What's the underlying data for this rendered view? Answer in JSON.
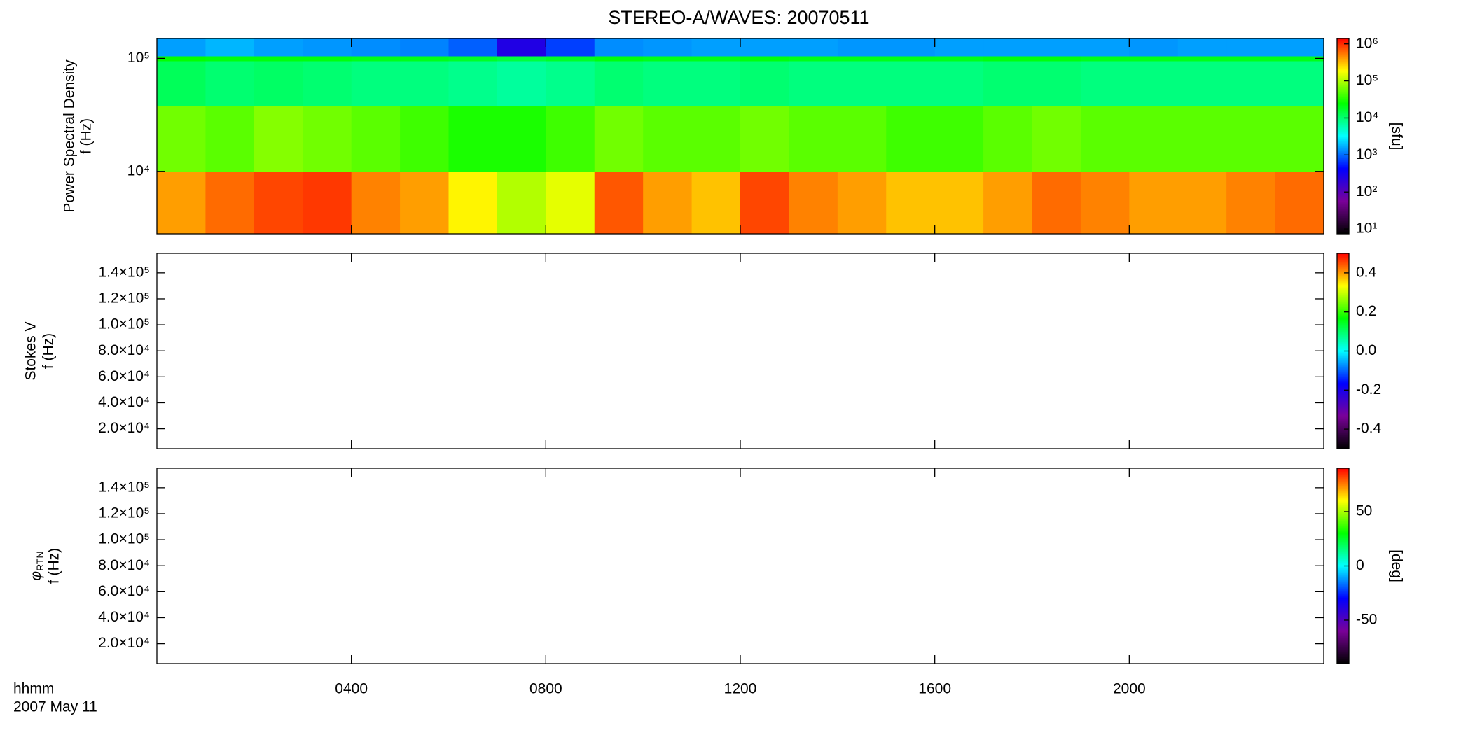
{
  "chart_data": {
    "type": "spectrogram",
    "title": "STEREO-A/WAVES: 20070511",
    "xlabel": "hhmm",
    "date_label": "2007 May 11",
    "xlim": [
      0,
      24
    ],
    "xticks": [
      {
        "value": 4,
        "label": "0400"
      },
      {
        "value": 8,
        "label": "0800"
      },
      {
        "value": 12,
        "label": "1200"
      },
      {
        "value": 16,
        "label": "1600"
      },
      {
        "value": 20,
        "label": "2000"
      }
    ],
    "colormap": [
      "#000000",
      "#7a0099",
      "#0000ff",
      "#00ffff",
      "#00ff00",
      "#ffff00",
      "#ff0000"
    ],
    "panels": [
      {
        "ylabel": [
          "Power Spectral Density",
          "f (Hz)"
        ],
        "yscale": "log",
        "ylim": [
          2800,
          150000
        ],
        "yticks": [
          {
            "value": 10000,
            "label": "10⁴"
          },
          {
            "value": 100000,
            "label": "10⁵"
          }
        ],
        "zscale": "log",
        "zlim": [
          7.4,
          1400000
        ],
        "zlabel": "[sfu]",
        "zticks": [
          {
            "value": 10,
            "label": "10¹"
          },
          {
            "value": 100,
            "label": "10²"
          },
          {
            "value": 1000,
            "label": "10³"
          },
          {
            "value": 10000,
            "label": "10⁴"
          },
          {
            "value": 100000,
            "label": "10⁵"
          },
          {
            "value": 1000000,
            "label": "10⁶"
          }
        ],
        "time_bins": [
          0,
          1,
          2,
          3,
          4,
          5,
          6,
          7,
          8,
          9,
          10,
          11,
          12,
          13,
          14,
          15,
          16,
          17,
          18,
          19,
          20,
          21,
          22,
          23,
          24
        ],
        "freq_bins": [
          2800,
          10000,
          38000,
          95000,
          105000,
          150000
        ],
        "values": [
          [
            400000,
            600000,
            800000,
            900000,
            500000,
            400000,
            200000,
            100000,
            150000,
            700000,
            400000,
            300000,
            800000,
            500000,
            400000,
            300000,
            300000,
            400000,
            600000,
            500000,
            400000,
            400000,
            500000,
            600000
          ],
          [
            60000,
            50000,
            70000,
            60000,
            50000,
            40000,
            30000,
            30000,
            40000,
            60000,
            50000,
            50000,
            60000,
            50000,
            50000,
            40000,
            40000,
            50000,
            60000,
            50000,
            50000,
            50000,
            50000,
            50000
          ],
          [
            12000,
            10000,
            11000,
            10000,
            9000,
            9000,
            8000,
            7000,
            8000,
            10000,
            9000,
            9000,
            10000,
            9000,
            9000,
            9000,
            9000,
            10000,
            10000,
            9000,
            9000,
            9000,
            9000,
            9000
          ],
          [
            25000,
            22000,
            22000,
            22000,
            20000,
            20000,
            18000,
            15000,
            18000,
            22000,
            20000,
            20000,
            22000,
            20000,
            20000,
            20000,
            20000,
            22000,
            22000,
            20000,
            20000,
            20000,
            20000,
            20000
          ],
          [
            1500,
            1800,
            1500,
            1400,
            1300,
            1200,
            900,
            250,
            700,
            1300,
            1400,
            1500,
            1500,
            1500,
            1400,
            1400,
            1500,
            1500,
            1500,
            1500,
            1400,
            1500,
            1500,
            1500
          ]
        ]
      },
      {
        "ylabel": [
          "Stokes V",
          "f (Hz)"
        ],
        "yscale": "linear",
        "ylim": [
          4700,
          155000
        ],
        "yticks": [
          {
            "value": 20000,
            "label": "2.0×10⁴"
          },
          {
            "value": 40000,
            "label": "4.0×10⁴"
          },
          {
            "value": 60000,
            "label": "6.0×10⁴"
          },
          {
            "value": 80000,
            "label": "8.0×10⁴"
          },
          {
            "value": 100000,
            "label": "1.0×10⁵"
          },
          {
            "value": 120000,
            "label": "1.2×10⁵"
          },
          {
            "value": 140000,
            "label": "1.4×10⁵"
          }
        ],
        "zscale": "linear",
        "zlim": [
          -0.5,
          0.5
        ],
        "zticks": [
          -0.4,
          -0.2,
          {
            "value": 0,
            "label": "0.0"
          },
          0.2,
          0.4
        ]
      },
      {
        "ylabel": [
          {
            "text": "φ",
            "sub": "RTN"
          },
          "f (Hz)"
        ],
        "yscale": "linear",
        "ylim": [
          4700,
          155000
        ],
        "yticks": [
          {
            "value": 20000,
            "label": "2.0×10⁴"
          },
          {
            "value": 40000,
            "label": "4.0×10⁴"
          },
          {
            "value": 60000,
            "label": "6.0×10⁴"
          },
          {
            "value": 80000,
            "label": "8.0×10⁴"
          },
          {
            "value": 100000,
            "label": "1.0×10⁵"
          },
          {
            "value": 120000,
            "label": "1.2×10⁵"
          },
          {
            "value": 140000,
            "label": "1.4×10⁵"
          }
        ],
        "zscale": "linear",
        "zlim": [
          -90,
          90
        ],
        "zlabel": "[deg]",
        "zticks": [
          -50,
          0,
          50
        ]
      }
    ]
  }
}
